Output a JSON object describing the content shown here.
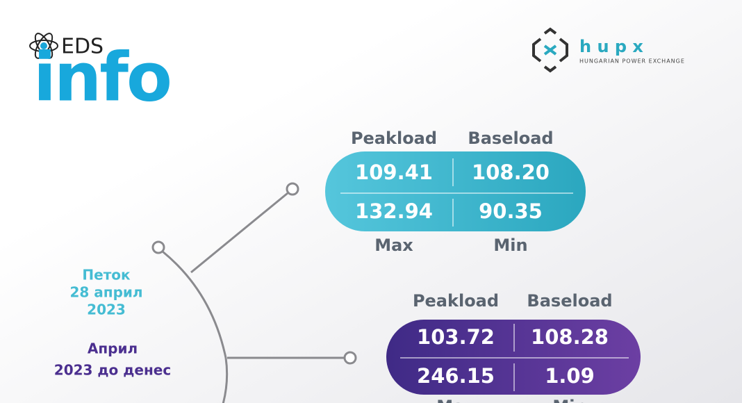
{
  "logo": {
    "brand": "EDS",
    "word": "info"
  },
  "partner": {
    "name": "h u p x",
    "subtitle": "HUNGARIAN POWER EXCHANGE"
  },
  "day": {
    "weekday": "Петок",
    "date": "28 април",
    "year": "2023"
  },
  "month": {
    "line1": "Април",
    "line2": "2023 до денес"
  },
  "panels": [
    {
      "headers": [
        "Peakload",
        "Baseload"
      ],
      "rows": [
        [
          "109.41",
          "108.20"
        ],
        [
          "132.94",
          "90.35"
        ]
      ],
      "footers": [
        "Max",
        "Min"
      ]
    },
    {
      "headers": [
        "Peakload",
        "Baseload"
      ],
      "rows": [
        [
          "103.72",
          "108.28"
        ],
        [
          "246.15",
          "1.09"
        ]
      ],
      "footers": [
        "Max",
        "Min"
      ]
    }
  ]
}
